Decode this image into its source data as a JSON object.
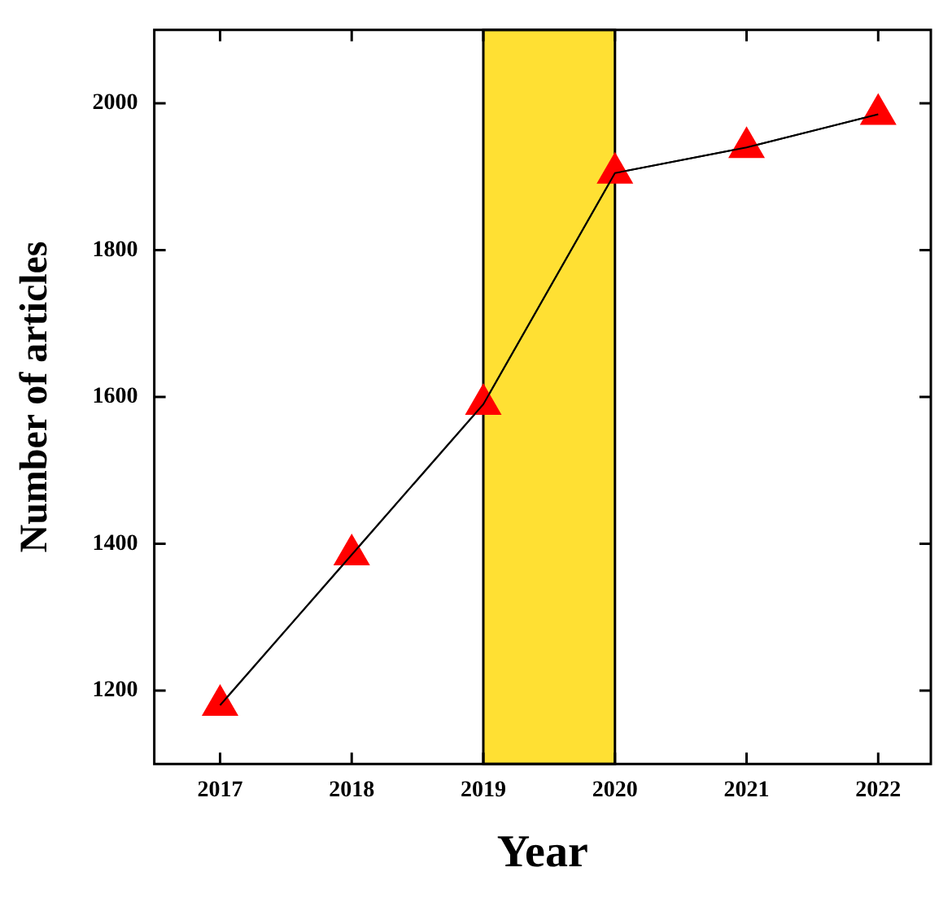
{
  "chart_data": {
    "type": "line",
    "xlabel": "Year",
    "ylabel": "Number of articles",
    "x": [
      2017,
      2018,
      2019,
      2020,
      2021,
      2022
    ],
    "series": [
      {
        "color": "#ff0000",
        "values": [
          1180,
          1385,
          1590,
          1905,
          1940,
          1985
        ]
      }
    ],
    "xlim": [
      2016.5,
      2022.4
    ],
    "xticks": [
      2017,
      2018,
      2019,
      2020,
      2021,
      2022
    ],
    "ylim": [
      1100,
      2100
    ],
    "yticks": [
      1200,
      1400,
      1600,
      1800,
      2000
    ],
    "bands": [
      {
        "axis": "x",
        "from": 2019,
        "to": 2020,
        "color": "#ffe033"
      }
    ],
    "marker": "triangle",
    "line_style": "solid",
    "grid": false,
    "legend": false
  }
}
